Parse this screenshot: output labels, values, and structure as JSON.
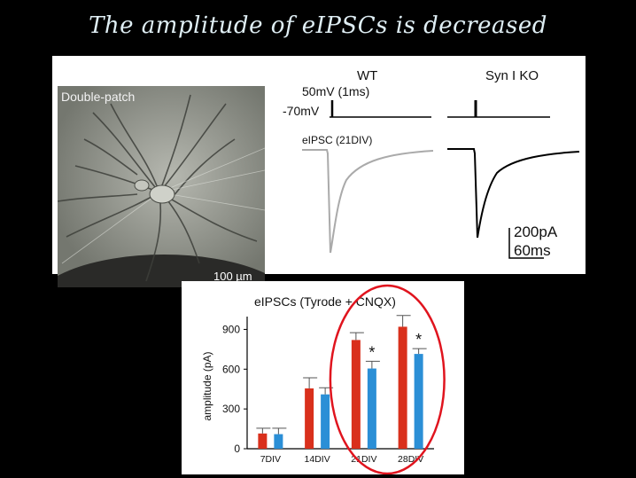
{
  "slide": {
    "title": "The amplitude of eIPSCs is decreased"
  },
  "micrograph": {
    "label": "Double-patch",
    "scale_bar": "100 µm"
  },
  "traces": {
    "wt_label": "WT",
    "ko_label": "Syn I KO",
    "stim_label": "50mV (1ms)",
    "hold_label": "-70mV",
    "eipsc_label": "eIPSC (21DIV)",
    "scale_current": "200pA",
    "scale_time": "60ms",
    "colors": {
      "wt": "#aaaaaa",
      "ko": "#000000"
    }
  },
  "chart_data": {
    "type": "bar",
    "title": "eIPSCs (Tyrode + CNQX)",
    "ylabel": "amplitude (pA)",
    "xlabel": "",
    "categories": [
      "7DIV",
      "14DIV",
      "21DIV",
      "28DIV"
    ],
    "ylim": [
      0,
      1050
    ],
    "yticks": [
      0,
      300,
      600,
      900
    ],
    "series": [
      {
        "color": "#d9301c",
        "values": [
          115,
          455,
          820,
          920
        ],
        "errors": [
          40,
          80,
          55,
          85
        ]
      },
      {
        "color": "#2b8fd6",
        "values": [
          110,
          410,
          605,
          715
        ],
        "errors": [
          45,
          50,
          55,
          40
        ]
      }
    ],
    "significance": [
      "",
      "",
      "*",
      "*"
    ],
    "highlight": {
      "shape": "ellipse",
      "color": "#e0141e",
      "around": [
        "21DIV",
        "28DIV"
      ]
    }
  }
}
